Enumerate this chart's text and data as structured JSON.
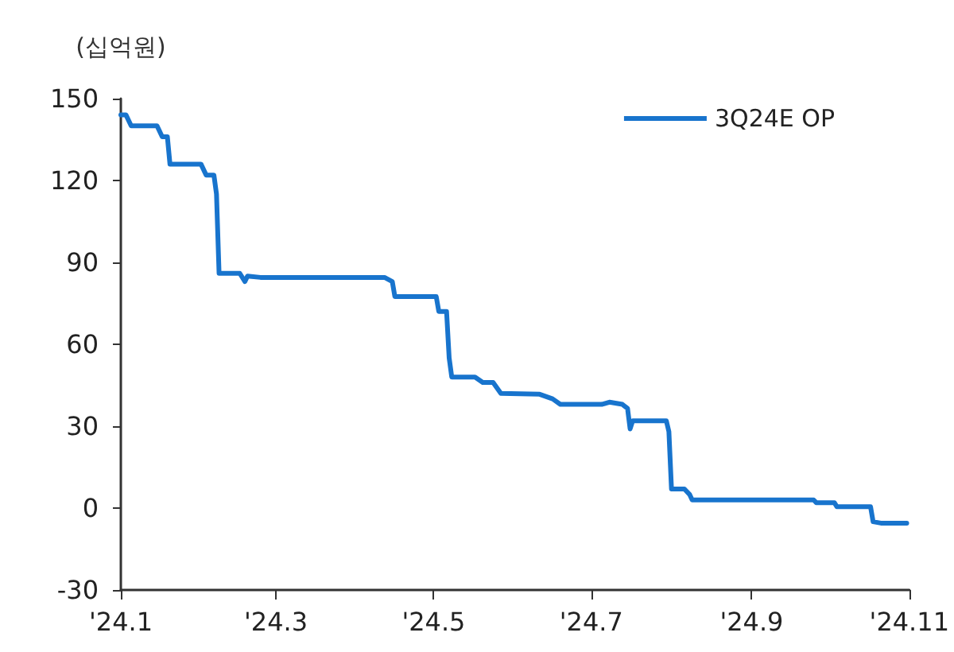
{
  "chart_data": {
    "type": "line",
    "ylabel": "(십억원)",
    "x": [
      "2024-01-01",
      "2024-01-03",
      "2024-01-05",
      "2024-01-15",
      "2024-01-17",
      "2024-01-19",
      "2024-01-20",
      "2024-02-01",
      "2024-02-03",
      "2024-02-06",
      "2024-02-07",
      "2024-02-08",
      "2024-02-16",
      "2024-02-18",
      "2024-02-19",
      "2024-02-24",
      "2024-04-12",
      "2024-04-15",
      "2024-04-16",
      "2024-05-02",
      "2024-05-03",
      "2024-05-06",
      "2024-05-07",
      "2024-05-08",
      "2024-05-17",
      "2024-05-20",
      "2024-05-24",
      "2024-05-27",
      "2024-06-11",
      "2024-06-16",
      "2024-06-19",
      "2024-07-05",
      "2024-07-08",
      "2024-07-13",
      "2024-07-15",
      "2024-07-16",
      "2024-07-17",
      "2024-07-30",
      "2024-07-31",
      "2024-08-01",
      "2024-08-06",
      "2024-08-08",
      "2024-08-09",
      "2024-09-25",
      "2024-09-26",
      "2024-10-03",
      "2024-10-04",
      "2024-10-17",
      "2024-10-18",
      "2024-10-21",
      "2024-10-31"
    ],
    "series": [
      {
        "name": "3Q24E OP",
        "color": "#1874cd",
        "values": [
          144,
          144,
          140,
          140,
          136,
          136,
          126,
          126,
          122,
          122,
          115,
          86,
          86,
          83,
          85,
          84.5,
          84.5,
          83,
          77.5,
          77.5,
          72,
          72,
          55,
          48,
          48,
          46,
          46,
          42,
          41.7,
          40,
          38,
          38,
          38.8,
          38,
          36.5,
          29,
          32,
          32,
          28,
          7,
          7,
          5,
          3,
          3,
          2,
          2,
          0.5,
          0.5,
          -5,
          -5.5,
          -5.5
        ]
      }
    ],
    "xlim": [
      "2024-01-01",
      "2024-11-01"
    ],
    "xticks": [
      {
        "value": "2024-01-01",
        "label": "'24.1"
      },
      {
        "value": "2024-03-01",
        "label": "'24.3"
      },
      {
        "value": "2024-05-01",
        "label": "'24.5"
      },
      {
        "value": "2024-07-01",
        "label": "'24.7"
      },
      {
        "value": "2024-09-01",
        "label": "'24.9"
      },
      {
        "value": "2024-11-01",
        "label": "'24.11"
      }
    ],
    "ylim": [
      -30,
      150
    ],
    "yticks": [
      -30,
      0,
      30,
      60,
      90,
      120,
      150
    ],
    "grid": false,
    "legend": "top right",
    "marker": "none",
    "line_style": "solid"
  }
}
